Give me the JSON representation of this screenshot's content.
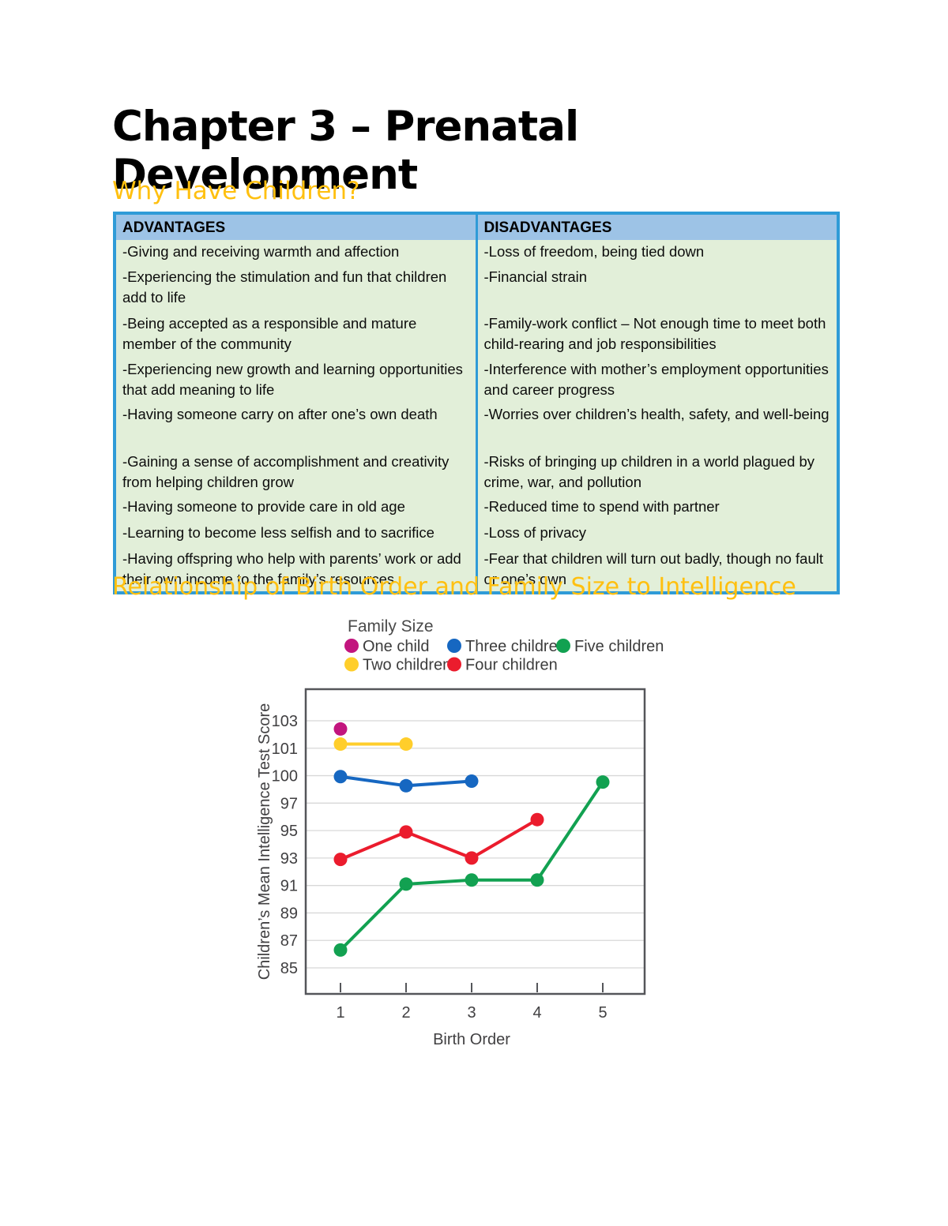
{
  "page": {
    "title": "Chapter 3 – Prenatal Development",
    "section1_heading": "Why Have Children?",
    "section2_heading": "Relationship of Birth Order and Family Size to Intelligence"
  },
  "table": {
    "headers": [
      "ADVANTAGES",
      "DISADVANTAGES"
    ],
    "rows": [
      {
        "adv": "-Giving and receiving warmth and affection",
        "dis": "-Loss of freedom, being tied down"
      },
      {
        "adv": "-Experiencing the stimulation and fun that children add to life",
        "dis": "-Financial strain"
      },
      {
        "adv": "-Being accepted as a responsible and mature member of the community",
        "dis": "-Family-work conflict – Not enough time to meet both child-rearing and job responsibilities"
      },
      {
        "adv": "-Experiencing new growth and learning opportunities that add meaning to life",
        "dis": "-Interference with mother’s employment opportunities and career progress"
      },
      {
        "adv": "-Having someone carry on after one’s own death",
        "dis": "-Worries over children’s health, safety, and well-being"
      },
      {
        "adv": "-Gaining a sense of accomplishment and creativity from helping children grow",
        "dis": "-Risks of bringing up children in a world plagued by crime, war, and pollution"
      },
      {
        "adv": "-Having someone to provide care in old age",
        "dis": "-Reduced time to spend with partner"
      },
      {
        "adv": "-Learning to become less selfish and to sacrifice",
        "dis": "-Loss of privacy"
      },
      {
        "adv": "-Having offspring who help with parents’ work or add their own income to the family’s resources",
        "dis": "-Fear that children will turn out badly, though no fault or one’s own"
      }
    ]
  },
  "chart_data": {
    "type": "line",
    "title": "",
    "legend_title": "Family Size",
    "xlabel": "Birth Order",
    "ylabel": "Children’s Mean Intelligence Test Score",
    "x_ticks": [
      "1",
      "2",
      "3",
      "4",
      "5"
    ],
    "y_tick_labels": [
      "103",
      "101",
      "100",
      "97",
      "95",
      "93",
      "91",
      "89",
      "87",
      "85"
    ],
    "grid": true,
    "legend_position": "top",
    "series": [
      {
        "name": "One child",
        "color": "#C2157E",
        "x": [
          1
        ],
        "values": [
          102.4
        ]
      },
      {
        "name": "Two children",
        "color": "#FFCE2B",
        "x": [
          1,
          2
        ],
        "values": [
          101.3,
          101.3
        ]
      },
      {
        "name": "Three children",
        "color": "#1667C1",
        "x": [
          1,
          2,
          3
        ],
        "values": [
          99.9,
          98.9,
          99.4
        ]
      },
      {
        "name": "Four children",
        "color": "#EB1C2D",
        "x": [
          1,
          2,
          3,
          4
        ],
        "values": [
          92.9,
          94.9,
          93.0,
          95.8
        ]
      },
      {
        "name": "Five children",
        "color": "#12A151",
        "x": [
          1,
          2,
          3,
          4,
          5
        ],
        "values": [
          86.3,
          91.1,
          91.4,
          91.4,
          99.3
        ]
      }
    ]
  },
  "colors": {
    "heading_accent": "#FFC010",
    "table_border": "#2F9BD7",
    "table_header_bg": "#9DC3E6",
    "table_body_bg": "#E2EFD9",
    "axis_text": "#414042",
    "gridline": "#D8D8D8",
    "plot_border": "#55565A"
  }
}
